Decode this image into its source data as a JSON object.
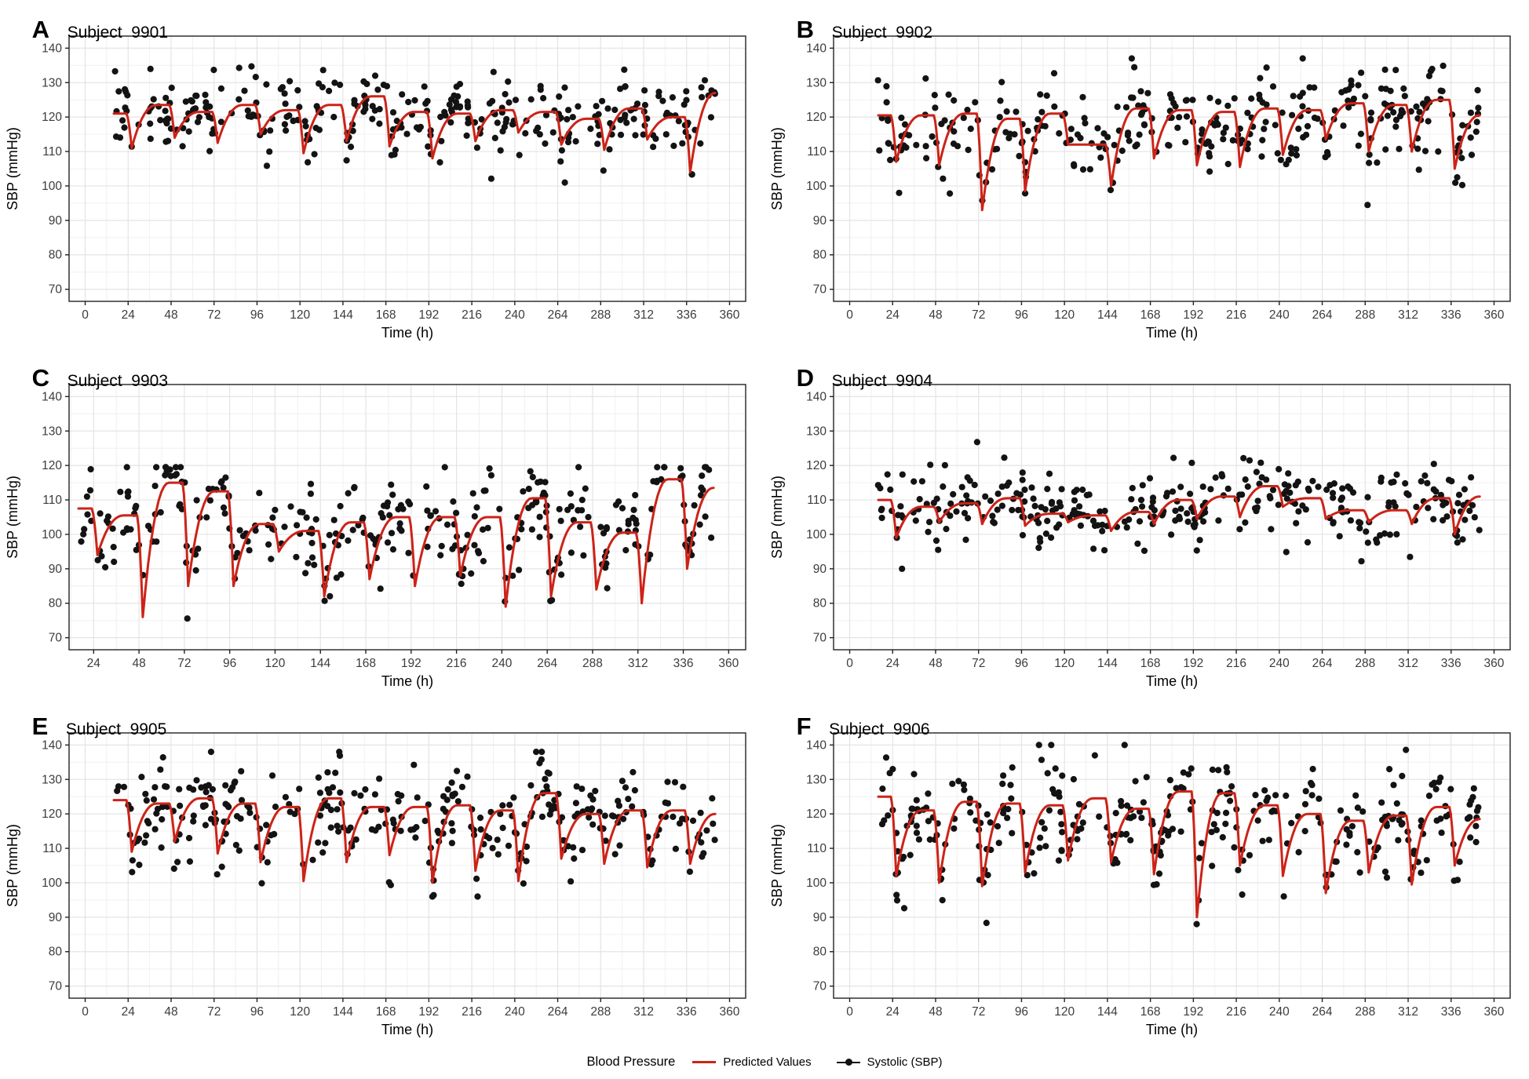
{
  "figure": {
    "background": "#ffffff",
    "grid_major_color": "#e4e4e4",
    "grid_minor_color": "#f0f0f0",
    "border_color": "#222222",
    "tick_color": "#222222",
    "axis_text_color": "#3c3c3c"
  },
  "legend": {
    "title": "Blood Pressure",
    "items": [
      {
        "name": "Predicted Values",
        "type": "line",
        "color": "#cc2318"
      },
      {
        "name": "Systolic (SBP)",
        "type": "point-line",
        "color": "#111111"
      }
    ]
  },
  "chart_data": [
    {
      "type": "scatter",
      "label": "A",
      "title": "Subject  9901",
      "xlabel": "Time (h)",
      "ylabel": "SBP (mmHg)",
      "xlim": [
        -9,
        369
      ],
      "ylim": [
        66.5,
        143.5
      ],
      "x_ticks": [
        0,
        24,
        48,
        72,
        96,
        120,
        144,
        168,
        192,
        216,
        240,
        264,
        288,
        312,
        336,
        360
      ],
      "y_ticks": [
        70,
        80,
        90,
        100,
        110,
        120,
        130,
        140
      ],
      "line_color": "#cc2318",
      "point_color": "#131313",
      "model_line": {
        "t_start": 16,
        "period": 24,
        "plateau": [
          121,
          123.5,
          121.5,
          123.5,
          122,
          123.5,
          126,
          121.5,
          121,
          122,
          121.5,
          119.5,
          122.5,
          120,
          127
        ],
        "dip": [
          111,
          114,
          112.5,
          115,
          109.5,
          113,
          111.5,
          108,
          113,
          115.5,
          112,
          110.5,
          113.5,
          104
        ]
      },
      "scatter": {
        "n": 330,
        "sd": 5.0,
        "seed": 11,
        "t_min": 15,
        "t_max": 352,
        "clip": [
          101,
          136.5
        ]
      }
    },
    {
      "type": "scatter",
      "label": "B",
      "title": "Subject  9902",
      "xlabel": "Time (h)",
      "ylabel": "SBP (mmHg)",
      "xlim": [
        -9,
        369
      ],
      "ylim": [
        66.5,
        143.5
      ],
      "x_ticks": [
        0,
        24,
        48,
        72,
        96,
        120,
        144,
        168,
        192,
        216,
        240,
        264,
        288,
        312,
        336,
        360
      ],
      "y_ticks": [
        70,
        80,
        90,
        100,
        110,
        120,
        130,
        140
      ],
      "line_color": "#cc2318",
      "point_color": "#131313",
      "model_line": {
        "t_start": 16,
        "period": 24,
        "plateau": [
          120.5,
          120.5,
          121,
          119.5,
          121,
          112,
          122.5,
          122,
          121.5,
          122.5,
          122,
          124,
          123.5,
          125,
          120.5
        ],
        "dip": [
          107,
          106,
          93,
          98.5,
          112,
          100,
          108,
          106,
          105.5,
          109,
          113.5,
          110,
          110,
          105
        ]
      },
      "scatter": {
        "n": 330,
        "sd": 6.0,
        "seed": 22,
        "t_min": 15,
        "t_max": 352,
        "clip": [
          88,
          137
        ]
      }
    },
    {
      "type": "scatter",
      "label": "C",
      "title": "Subject  9903",
      "xlabel": "Time (h)",
      "ylabel": "SBP (mmHg)",
      "xlim": [
        11,
        369
      ],
      "ylim": [
        66.5,
        143.5
      ],
      "x_ticks": [
        24,
        48,
        72,
        96,
        120,
        144,
        168,
        192,
        216,
        240,
        264,
        288,
        312,
        336,
        360
      ],
      "y_ticks": [
        70,
        80,
        90,
        100,
        110,
        120,
        130,
        140
      ],
      "line_color": "#cc2318",
      "point_color": "#131313",
      "model_line": {
        "t_start": 16,
        "period": 24,
        "plateau": [
          107.5,
          105.5,
          115,
          112.5,
          103,
          101,
          103.5,
          105,
          105,
          105,
          110.5,
          103.5,
          100.5,
          116,
          113.5
        ],
        "dip": [
          94,
          76,
          85,
          85,
          95,
          82,
          87,
          85,
          88,
          79,
          82,
          84,
          80,
          90
        ]
      },
      "scatter": {
        "n": 330,
        "sd": 6.5,
        "seed": 33,
        "t_min": 15,
        "t_max": 352,
        "clip": [
          74,
          119.5
        ]
      }
    },
    {
      "type": "scatter",
      "label": "D",
      "title": "Subject  9904",
      "xlabel": "Time (h)",
      "ylabel": "SBP (mmHg)",
      "xlim": [
        -9,
        369
      ],
      "ylim": [
        66.5,
        143.5
      ],
      "x_ticks": [
        0,
        24,
        48,
        72,
        96,
        120,
        144,
        168,
        192,
        216,
        240,
        264,
        288,
        312,
        336,
        360
      ],
      "y_ticks": [
        70,
        80,
        90,
        100,
        110,
        120,
        130,
        140
      ],
      "line_color": "#cc2318",
      "point_color": "#131313",
      "model_line": {
        "t_start": 16,
        "period": 24,
        "plateau": [
          110,
          108,
          109,
          110.5,
          106,
          105.5,
          106.5,
          110,
          111,
          114,
          110.5,
          107,
          107,
          110.5,
          111
        ],
        "dip": [
          99,
          103.5,
          103,
          102.5,
          103.5,
          101,
          103,
          104.5,
          105,
          108,
          104.5,
          103.5,
          103,
          100
        ]
      },
      "scatter": {
        "n": 330,
        "sd": 5.5,
        "seed": 44,
        "t_min": 15,
        "t_max": 352,
        "clip": [
          90,
          131
        ]
      }
    },
    {
      "type": "scatter",
      "label": "E",
      "title": "Subject  9905",
      "xlabel": "Time (h)",
      "ylabel": "SBP (mmHg)",
      "xlim": [
        -9,
        369
      ],
      "ylim": [
        66.5,
        143.5
      ],
      "x_ticks": [
        0,
        24,
        48,
        72,
        96,
        120,
        144,
        168,
        192,
        216,
        240,
        264,
        288,
        312,
        336,
        360
      ],
      "y_ticks": [
        70,
        80,
        90,
        100,
        110,
        120,
        130,
        140
      ],
      "line_color": "#cc2318",
      "point_color": "#131313",
      "model_line": {
        "t_start": 16,
        "period": 24,
        "plateau": [
          124,
          123,
          124.5,
          123,
          122,
          124.5,
          122,
          122,
          122.5,
          121,
          126,
          120,
          121,
          121,
          120
        ],
        "dip": [
          109,
          112,
          108.5,
          106,
          100.5,
          106,
          108,
          100,
          103.5,
          100.5,
          107,
          105.5,
          104.5,
          105.5
        ]
      },
      "scatter": {
        "n": 330,
        "sd": 6.0,
        "seed": 55,
        "t_min": 15,
        "t_max": 352,
        "clip": [
          96,
          138
        ]
      }
    },
    {
      "type": "scatter",
      "label": "F",
      "title": "Subject  9906",
      "xlabel": "Time (h)",
      "ylabel": "SBP (mmHg)",
      "xlim": [
        -9,
        369
      ],
      "ylim": [
        66.5,
        143.5
      ],
      "x_ticks": [
        0,
        24,
        48,
        72,
        96,
        120,
        144,
        168,
        192,
        216,
        240,
        264,
        288,
        312,
        336,
        360
      ],
      "y_ticks": [
        70,
        80,
        90,
        100,
        110,
        120,
        130,
        140
      ],
      "line_color": "#cc2318",
      "point_color": "#131313",
      "model_line": {
        "t_start": 16,
        "period": 24,
        "plateau": [
          125,
          121,
          123.5,
          123,
          122.5,
          124.5,
          121.5,
          126.5,
          126,
          122.5,
          120,
          118,
          119.5,
          122,
          118.5
        ],
        "dip": [
          102,
          100,
          99,
          103,
          106.5,
          106,
          102.5,
          90,
          105,
          102,
          97,
          103,
          99.5,
          105
        ]
      },
      "scatter": {
        "n": 330,
        "sd": 6.5,
        "seed": 66,
        "t_min": 15,
        "t_max": 352,
        "clip": [
          88,
          140
        ]
      }
    }
  ]
}
